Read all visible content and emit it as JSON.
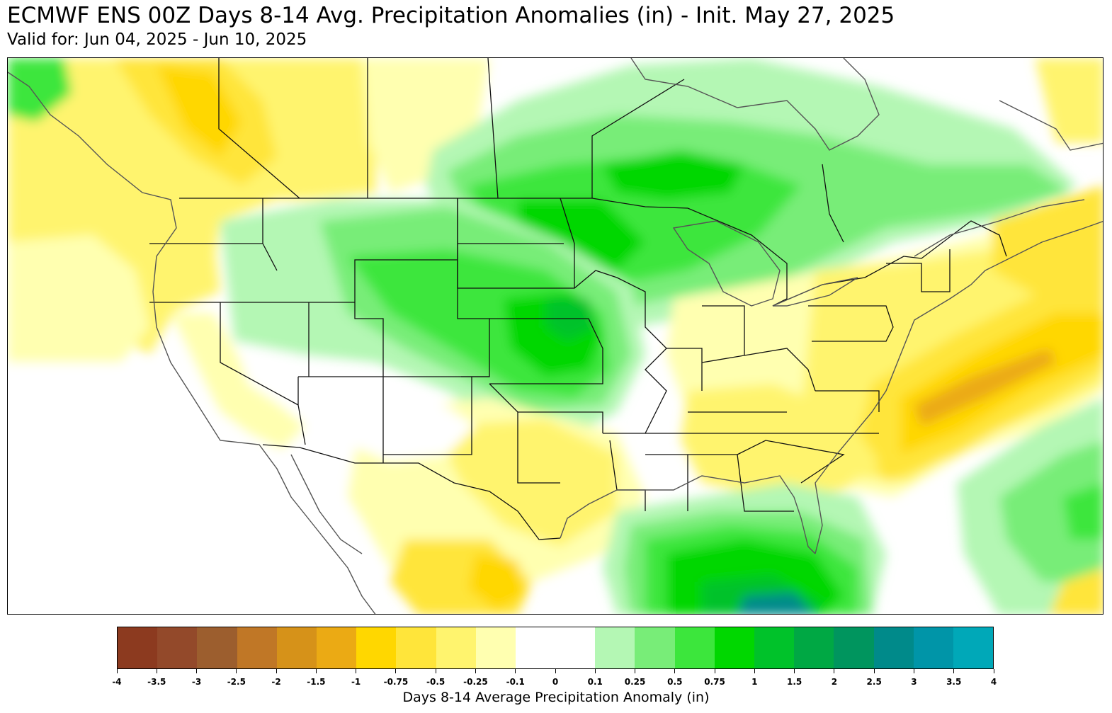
{
  "header": {
    "title": "ECMWF ENS 00Z Days 8-14 Avg. Precipitation Anomalies (in) - Init. May 27, 2025",
    "subtitle": "Valid for: Jun 04, 2025 - Jun 10, 2025"
  },
  "colorbar": {
    "label": "Days 8-14 Average Precipitation Anomaly (in)",
    "ticks": [
      "-4",
      "-3.5",
      "-3",
      "-2.5",
      "-2",
      "-1.5",
      "-1",
      "-0.75",
      "-0.5",
      "-0.25",
      "-0.1",
      "0",
      "0.1",
      "0.25",
      "0.5",
      "0.75",
      "1",
      "1.5",
      "2",
      "2.5",
      "3",
      "3.5",
      "4"
    ],
    "colors": [
      "#8c3a1f",
      "#93492a",
      "#9c5e2e",
      "#c07726",
      "#d69219",
      "#ebaa14",
      "#ffd700",
      "#ffe53a",
      "#fff46e",
      "#ffffb0",
      "#ffffff",
      "#ffffff",
      "#b4f7b4",
      "#78ed78",
      "#3ce63c",
      "#00d700",
      "#00c22a",
      "#00a844",
      "#00955e",
      "#008a8a",
      "#0095a8",
      "#00a8b8"
    ]
  },
  "map": {
    "colors": {
      "lightyellow": "#ffffb0",
      "yellow": "#fff46e",
      "gold": "#ffe53a",
      "deepgold": "#ffd700",
      "orange": "#ebaa14",
      "lightgreen": "#b4f7b4",
      "green": "#78ed78",
      "medgreen": "#3ce63c",
      "brightgreen": "#00d700",
      "darkgreen": "#00c22a",
      "teal": "#008a8a"
    }
  }
}
